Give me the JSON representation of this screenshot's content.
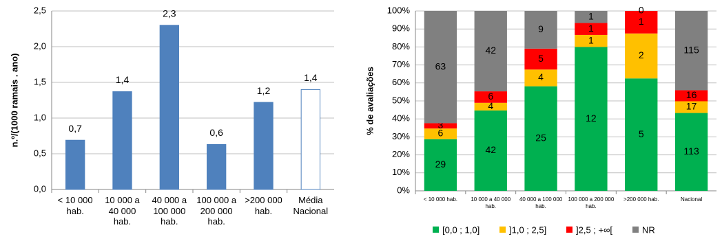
{
  "chart_data": [
    {
      "type": "bar",
      "y_label": "n.º/(1000 ramais . ano)",
      "categories": [
        "< 10 000 hab.",
        "10 000 a 40 000 hab.",
        "40 000 a 100 000 hab.",
        "100 000 a 200 000 hab.",
        ">200 000 hab.",
        "Média Nacional"
      ],
      "values": [
        0.69,
        1.37,
        2.3,
        0.63,
        1.22,
        1.4
      ],
      "value_labels": [
        "0,7",
        "1,4",
        "2,3",
        "0,6",
        "1,2",
        "1,4"
      ],
      "colors": [
        "#4f81bd",
        "#4f81bd",
        "#4f81bd",
        "#4f81bd",
        "#4f81bd",
        "#ffffff"
      ],
      "edgecolor": "#4f81bd",
      "ylim": [
        0,
        2.5
      ],
      "yticks": [
        {
          "value": 0,
          "label": "0,0"
        },
        {
          "value": 0.5,
          "label": "0,5"
        },
        {
          "value": 1,
          "label": "1,0"
        },
        {
          "value": 1.5,
          "label": "1,5"
        },
        {
          "value": 2,
          "label": "2,0"
        },
        {
          "value": 2.5,
          "label": "2,5"
        }
      ],
      "grid": true
    },
    {
      "type": "stacked_percent_bar",
      "y_label": "% de avaliações",
      "categories": [
        "< 10 000 hab.",
        "10 000 a 40 000 hab.",
        "40 000 a 100 000 hab.",
        "100 000 a 200 000 hab.",
        ">200 000  hab.",
        "Nacional"
      ],
      "series": [
        {
          "name": "[0,0 ; 1,0]",
          "color": "#00b050",
          "values": [
            29,
            42,
            25,
            12,
            5,
            113
          ]
        },
        {
          "name": "]1,0 ; 2,5]",
          "color": "#ffc000",
          "values": [
            6,
            4,
            4,
            1,
            2,
            17
          ]
        },
        {
          "name": "]2,5 ; +∞[",
          "color": "#ff0000",
          "values": [
            3,
            6,
            5,
            1,
            1,
            16
          ]
        },
        {
          "name": "NR",
          "color": "#808080",
          "values": [
            63,
            42,
            9,
            1,
            0,
            115
          ]
        }
      ],
      "ylim": [
        0,
        100
      ],
      "yticks": [
        {
          "value": 0,
          "label": "0%"
        },
        {
          "value": 10,
          "label": "10%"
        },
        {
          "value": 20,
          "label": "20%"
        },
        {
          "value": 30,
          "label": "30%"
        },
        {
          "value": 40,
          "label": "40%"
        },
        {
          "value": 50,
          "label": "50%"
        },
        {
          "value": 60,
          "label": "60%"
        },
        {
          "value": 70,
          "label": "70%"
        },
        {
          "value": 80,
          "label": "80%"
        },
        {
          "value": 90,
          "label": "90%"
        },
        {
          "value": 100,
          "label": "100%"
        }
      ],
      "grid": true,
      "legend": "bottom"
    }
  ]
}
